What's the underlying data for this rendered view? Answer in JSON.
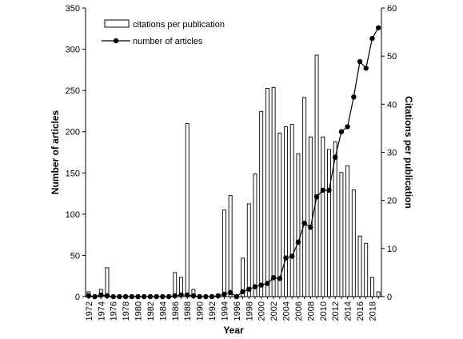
{
  "chart_data": {
    "type": "bar+line",
    "xlabel": "Year",
    "ylabel_left": "Number of articles",
    "ylabel_right": "Citations per publication",
    "ylim_left": [
      0,
      350
    ],
    "ylim_right": [
      0,
      60
    ],
    "left_ticks": [
      0,
      50,
      100,
      150,
      200,
      250,
      300,
      350
    ],
    "right_ticks": [
      0,
      10,
      20,
      30,
      40,
      50,
      60
    ],
    "years": [
      1972,
      1973,
      1974,
      1975,
      1976,
      1977,
      1978,
      1979,
      1980,
      1981,
      1982,
      1983,
      1984,
      1985,
      1986,
      1987,
      1988,
      1989,
      1990,
      1991,
      1992,
      1993,
      1994,
      1995,
      1996,
      1997,
      1998,
      1999,
      2000,
      2001,
      2002,
      2003,
      2004,
      2005,
      2006,
      2007,
      2008,
      2009,
      2010,
      2011,
      2012,
      2013,
      2014,
      2015,
      2016,
      2017,
      2018,
      2019
    ],
    "x_tick_labels": [
      "1972",
      "1974",
      "1976",
      "1978",
      "1980",
      "1982",
      "1984",
      "1986",
      "1988",
      "1990",
      "1992",
      "1994",
      "1996",
      "1998",
      "2000",
      "2002",
      "2004",
      "2006",
      "2008",
      "2010",
      "2012",
      "2014",
      "2016",
      "2018"
    ],
    "grid": false,
    "legend_position": "top-left",
    "series": [
      {
        "name": "citations per publication",
        "type": "bar",
        "axis": "right",
        "color": "#ffffff",
        "values": [
          1,
          0,
          1.5,
          6,
          0,
          0,
          0,
          0,
          0,
          0,
          0,
          0,
          0,
          0,
          5,
          4,
          36,
          1.5,
          0,
          0,
          0,
          0,
          18,
          21,
          0,
          8,
          19.3,
          25.5,
          38.5,
          43.3,
          43.5,
          34,
          35.3,
          35.8,
          29.7,
          41.4,
          33.2,
          50.2,
          33.2,
          30.6,
          32.2,
          25.8,
          27.2,
          22.2,
          12.6,
          11.1,
          4,
          1
        ]
      },
      {
        "name": "number of articles",
        "type": "line",
        "axis": "left",
        "color": "#000000",
        "values": [
          1,
          0,
          2,
          1,
          0,
          0,
          0,
          0,
          0,
          0,
          0,
          0,
          0,
          0,
          1,
          2,
          2,
          1,
          0,
          0,
          0,
          1,
          3,
          5,
          0,
          6,
          9,
          12,
          14,
          16,
          23,
          22,
          47,
          49,
          66,
          89,
          84,
          121,
          129,
          129,
          169,
          200,
          206,
          242,
          285,
          277,
          313,
          326
        ]
      }
    ]
  }
}
